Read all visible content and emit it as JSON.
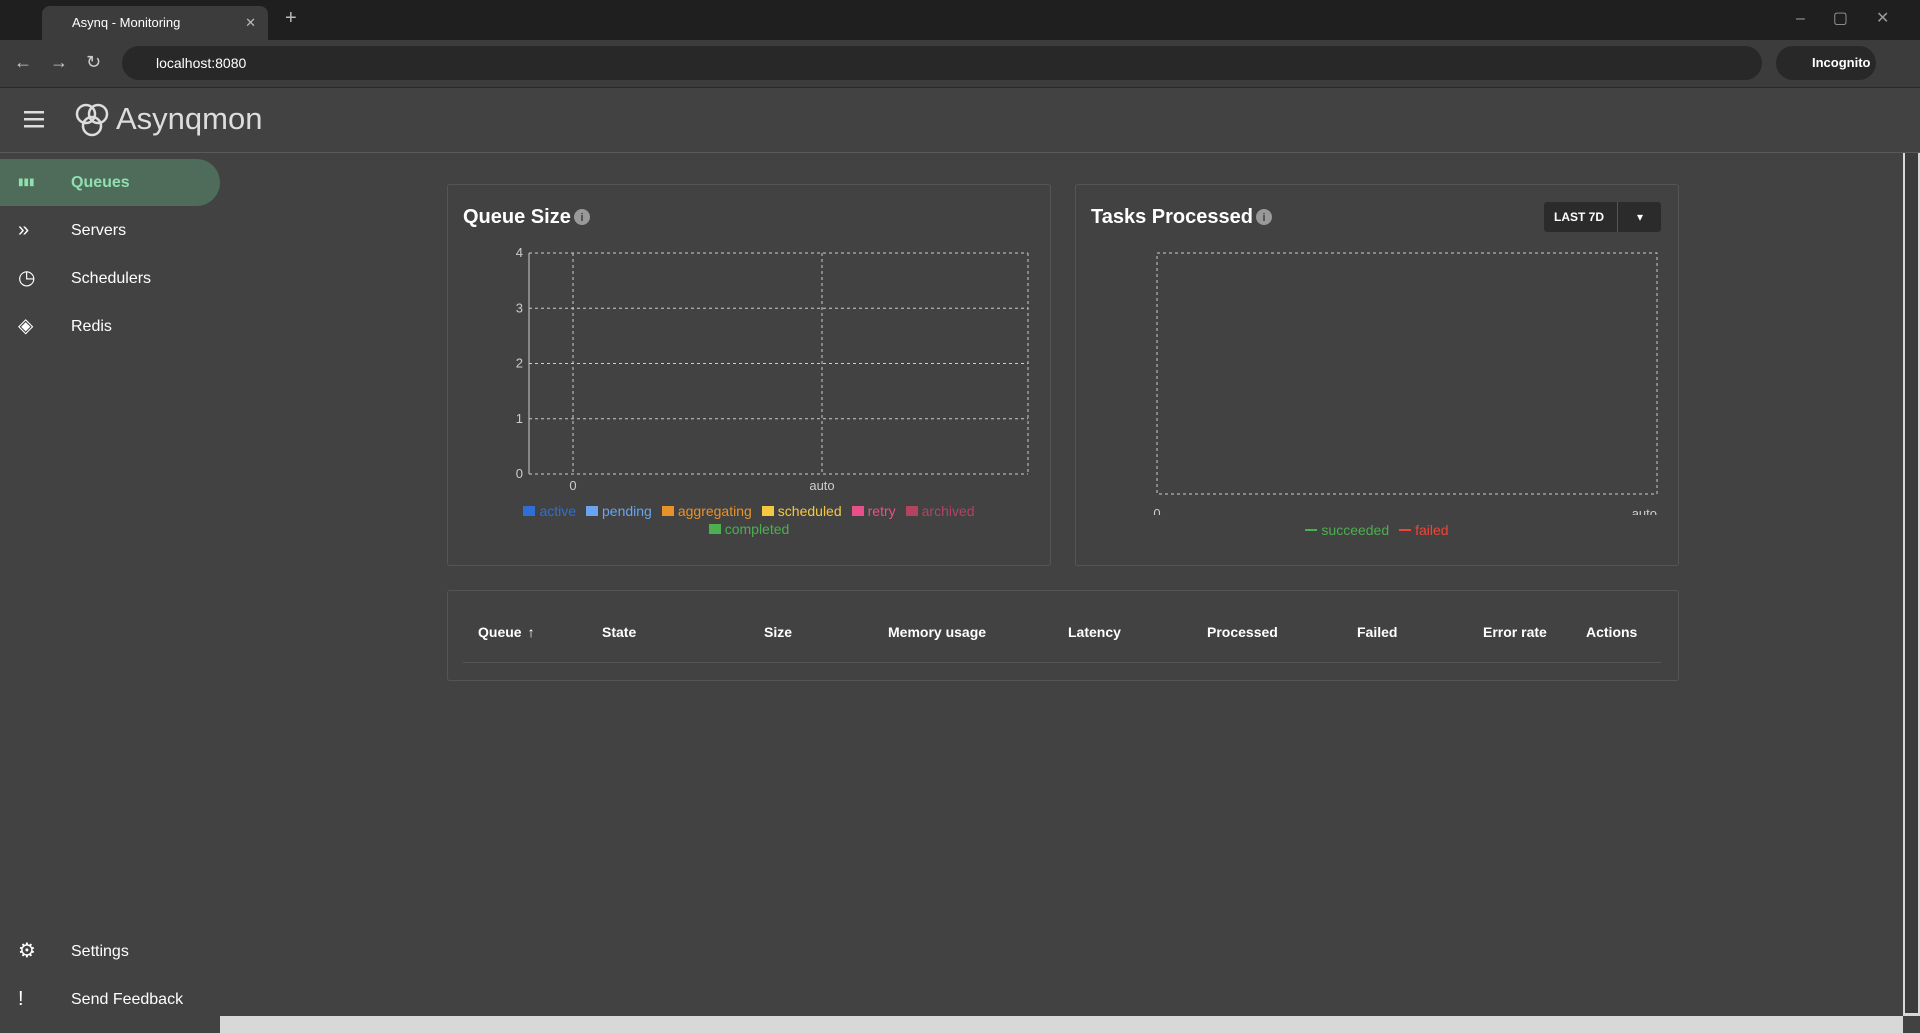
{
  "browser": {
    "tab_title": "Asynq - Monitoring",
    "url": "localhost:8080",
    "incognito": "Incognito"
  },
  "app": {
    "name": "Asynqmon"
  },
  "nav": {
    "items": [
      "Queues",
      "Servers",
      "Schedulers",
      "Redis"
    ],
    "bottom": [
      "Settings",
      "Send Feedback"
    ]
  },
  "queue_size": {
    "title": "Queue Size",
    "ylim": [
      0,
      4
    ],
    "yticks": [
      0,
      1,
      2,
      3,
      4
    ],
    "xticks": [
      "0",
      "auto"
    ],
    "grid": true,
    "legend": [
      {
        "name": "active",
        "color": "#2f6fd4"
      },
      {
        "name": "pending",
        "color": "#6aa3ef"
      },
      {
        "name": "aggregating",
        "color": "#e8922c"
      },
      {
        "name": "scheduled",
        "color": "#f5c842"
      },
      {
        "name": "retry",
        "color": "#e8508c"
      },
      {
        "name": "archived",
        "color": "#b24462"
      },
      {
        "name": "completed",
        "color": "#4caf50"
      }
    ]
  },
  "tasks_processed": {
    "title": "Tasks Processed",
    "range_button": "LAST 7D",
    "xticks": [
      "0",
      "auto"
    ],
    "legend": [
      {
        "name": "succeeded",
        "color": "#4caf50"
      },
      {
        "name": "failed",
        "color": "#f44336"
      }
    ]
  },
  "table": {
    "headers": [
      "Queue",
      "State",
      "Size",
      "Memory usage",
      "Latency",
      "Processed",
      "Failed",
      "Error rate",
      "Actions"
    ]
  }
}
